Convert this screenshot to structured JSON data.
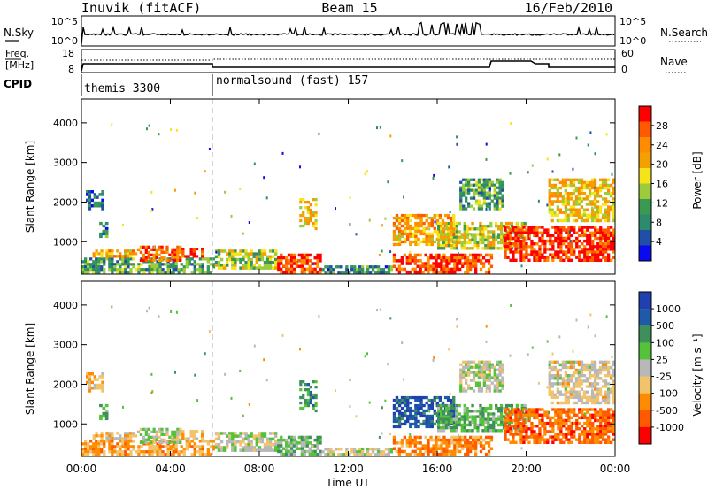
{
  "header": {
    "station": "Inuvik (fitACF)",
    "beam": "Beam 15",
    "date": "16/Feb/2010"
  },
  "sky_panel": {
    "left_label": "N.Sky",
    "right_label": "N.Search",
    "ticks_left": [
      "10^5",
      "10^0"
    ],
    "ticks_right": [
      "10^5",
      "10^0"
    ]
  },
  "freq_panel": {
    "left_label_1": "Freq.",
    "left_label_2": "[MHz]",
    "right_label": "Nave",
    "ticks_left": [
      "18",
      "8"
    ],
    "ticks_right": [
      "60",
      "0"
    ]
  },
  "cpid": {
    "label": "CPID",
    "segments": [
      {
        "name": "themis 3300",
        "start_hour": 0,
        "end_hour": 6
      },
      {
        "name": "normalsound (fast) 157",
        "start_hour": 6,
        "end_hour": 24
      }
    ]
  },
  "power_panel": {
    "ylabel": "Slant Range [km]",
    "yticks": [
      "4000",
      "3000",
      "2000",
      "1000"
    ],
    "colorbar_label": "Power [dB]",
    "colorbar_ticks": [
      "28",
      "24",
      "20",
      "16",
      "12",
      "8",
      "4"
    ],
    "colorbar_colors": [
      "#ff0000",
      "#ff5a00",
      "#ff8c00",
      "#f4a000",
      "#f6e41a",
      "#9ccb3c",
      "#3a9a52",
      "#2e8a6e",
      "#1f4fa8",
      "#0a0af0"
    ]
  },
  "velocity_panel": {
    "ylabel": "Slant Range [km]",
    "yticks": [
      "4000",
      "3000",
      "2000",
      "1000"
    ],
    "colorbar_label": "Velocity [m s⁻¹]",
    "colorbar_ticks": [
      "1000",
      "500",
      "100",
      "25",
      "-25",
      "-100",
      "-500",
      "-1000"
    ],
    "colorbar_colors": [
      "#2040b0",
      "#1f5aa8",
      "#3f8f5a",
      "#55c23c",
      "#b8b8b8",
      "#f2c36a",
      "#ff8c00",
      "#ff5a00",
      "#ff0000"
    ]
  },
  "x_axis": {
    "label": "Time UT",
    "ticks": [
      "00:00",
      "04:00",
      "08:00",
      "12:00",
      "16:00",
      "20:00",
      "00:00"
    ]
  },
  "chart_data": {
    "type": "heatmap",
    "title": "Inuvik (fitACF) Beam 15 16/Feb/2010",
    "xlabel": "Time UT",
    "ylabel": "Slant Range [km]",
    "xlim_hours": [
      0,
      24
    ],
    "ylim_km": [
      180,
      4600
    ],
    "power_scale_db": [
      0,
      30
    ],
    "velocity_scale_ms": [
      -1000,
      1000
    ],
    "regions": [
      {
        "t0": 0.0,
        "t1": 6.0,
        "r0": 200,
        "r1": 600,
        "power": 10,
        "velocity": -400
      },
      {
        "t0": 0.5,
        "t1": 2.5,
        "r0": 600,
        "r1": 800,
        "power": 20,
        "velocity": -200
      },
      {
        "t0": 0.2,
        "t1": 1.0,
        "r0": 1800,
        "r1": 2300,
        "power": 6,
        "velocity": -300
      },
      {
        "t0": 0.8,
        "t1": 1.2,
        "r0": 1100,
        "r1": 1500,
        "power": 8,
        "velocity": 300
      },
      {
        "t0": 2.5,
        "t1": 4.5,
        "r0": 500,
        "r1": 900,
        "power": 24,
        "velocity": 60
      },
      {
        "t0": 4.5,
        "t1": 5.5,
        "r0": 600,
        "r1": 850,
        "power": 26,
        "velocity": -300
      },
      {
        "t0": 6.0,
        "t1": 8.8,
        "r0": 300,
        "r1": 800,
        "power": 14,
        "velocity": 0
      },
      {
        "t0": 8.8,
        "t1": 10.8,
        "r0": 200,
        "r1": 700,
        "power": 26,
        "velocity": 200
      },
      {
        "t0": 9.8,
        "t1": 10.6,
        "r0": 1300,
        "r1": 2100,
        "power": 18,
        "velocity": 400
      },
      {
        "t0": 10.8,
        "t1": 14.0,
        "r0": 200,
        "r1": 400,
        "power": 8,
        "velocity": -50
      },
      {
        "t0": 14.0,
        "t1": 16.8,
        "r0": 900,
        "r1": 1700,
        "power": 20,
        "velocity": 700
      },
      {
        "t0": 14.0,
        "t1": 18.5,
        "r0": 200,
        "r1": 700,
        "power": 26,
        "velocity": -500
      },
      {
        "t0": 16.0,
        "t1": 20.0,
        "r0": 800,
        "r1": 1500,
        "power": 16,
        "velocity": 300
      },
      {
        "t0": 17.0,
        "t1": 19.0,
        "r0": 1800,
        "r1": 2600,
        "power": 10,
        "velocity": 0
      },
      {
        "t0": 19.0,
        "t1": 24.0,
        "r0": 500,
        "r1": 1400,
        "power": 28,
        "velocity": -600
      },
      {
        "t0": 21.0,
        "t1": 24.0,
        "r0": 1500,
        "r1": 2600,
        "power": 18,
        "velocity": -120
      }
    ]
  }
}
